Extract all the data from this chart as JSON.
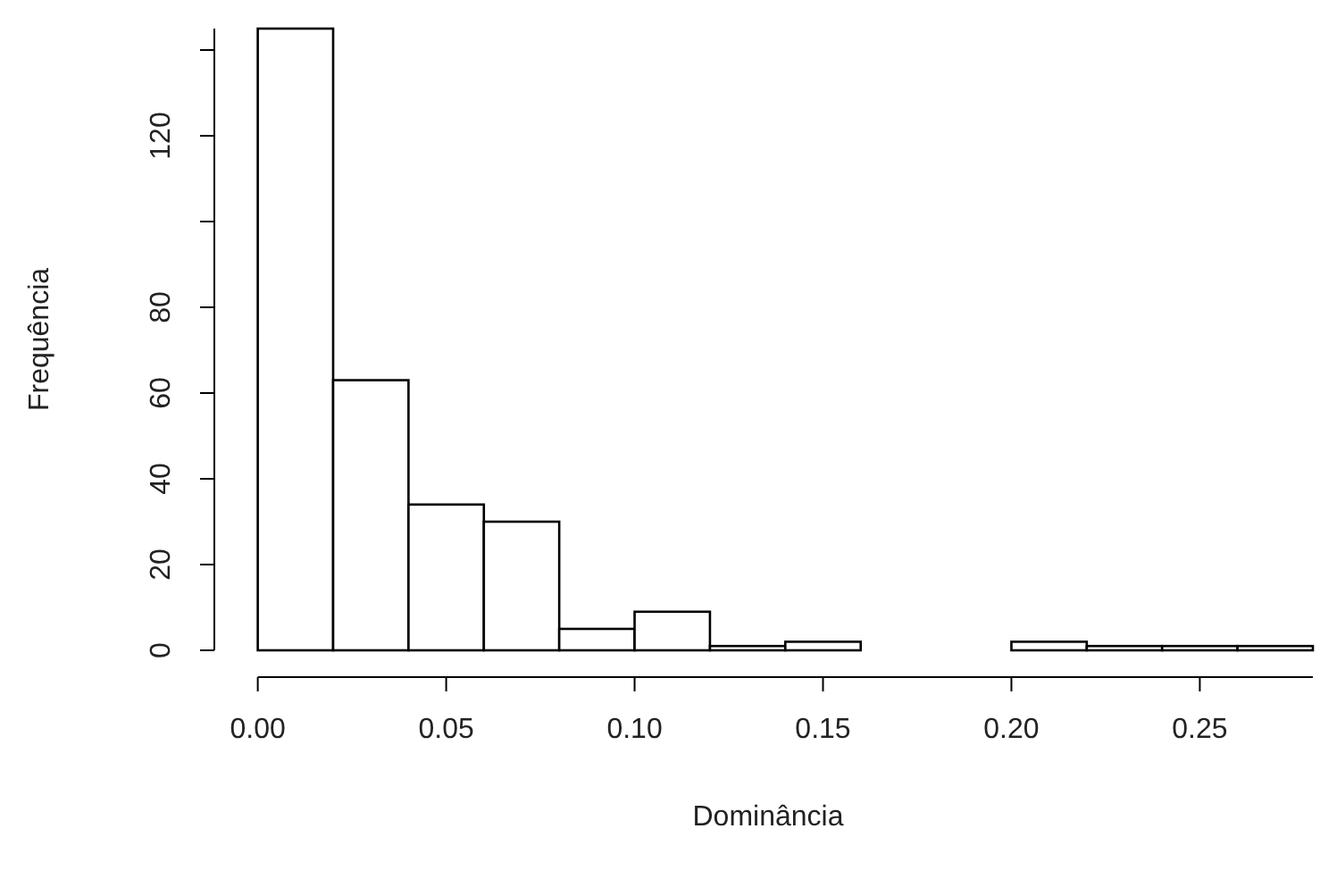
{
  "chart_data": {
    "type": "histogram",
    "xlabel": "Dominância",
    "ylabel": "Frequência",
    "bins": [
      0,
      0.02,
      0.04,
      0.06,
      0.08,
      0.1,
      0.12,
      0.14,
      0.16,
      0.18,
      0.2,
      0.22,
      0.24,
      0.26,
      0.28
    ],
    "values": [
      145,
      63,
      34,
      30,
      5,
      9,
      1,
      2,
      0,
      0,
      2,
      1,
      1,
      1
    ],
    "color": "#ffffff",
    "xlim": [
      -0.012,
      0.28
    ],
    "ylim": [
      0,
      145
    ],
    "xticks": [
      {
        "value": 0,
        "label": "0.00"
      },
      {
        "value": 0.05,
        "label": "0.05"
      },
      {
        "value": 0.1,
        "label": "0.10"
      },
      {
        "value": 0.15,
        "label": "0.15"
      },
      {
        "value": 0.2,
        "label": "0.20"
      },
      {
        "value": 0.25,
        "label": "0.25"
      }
    ],
    "yticks": [
      0,
      20,
      40,
      60,
      80,
      {
        "value": 100,
        "label": null
      },
      120,
      {
        "value": 140,
        "label": null
      }
    ]
  }
}
